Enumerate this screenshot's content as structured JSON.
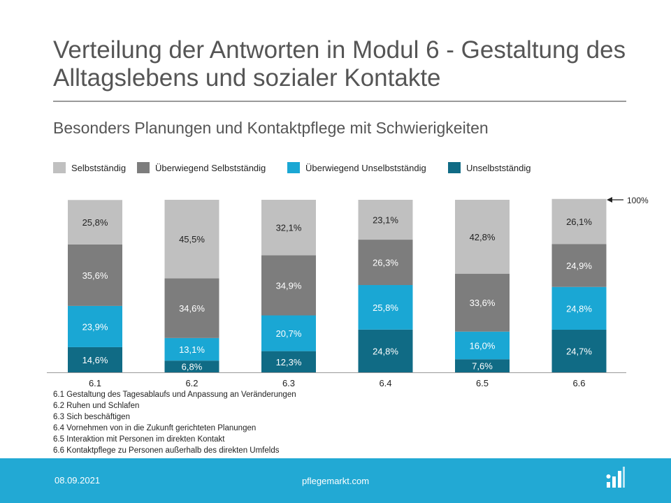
{
  "title": "Verteilung der Antworten in Modul 6 - Gestaltung des Alltagslebens und sozialer Kontakte",
  "subtitle": "Besonders Planungen und Kontaktpflege mit Schwierigkeiten",
  "chart_data": {
    "type": "bar",
    "stacked": true,
    "categories": [
      "6.1",
      "6.2",
      "6.3",
      "6.4",
      "6.5",
      "6.6"
    ],
    "series": [
      {
        "name": "Unselbstständig",
        "color": "#106b85",
        "values": [
          14.6,
          6.8,
          12.3,
          24.8,
          7.6,
          24.7
        ],
        "labels": [
          "14,6%",
          "6,8%",
          "12,3%",
          "24,8%",
          "7,6%",
          "24,7%"
        ]
      },
      {
        "name": "Überwiegend Unselbstständig",
        "color": "#1aa7d4",
        "values": [
          23.9,
          13.1,
          20.7,
          25.8,
          16.0,
          24.8
        ],
        "labels": [
          "23,9%",
          "13,1%",
          "20,7%",
          "25,8%",
          "16,0%",
          "24,8%"
        ]
      },
      {
        "name": "Überwiegend Selbstständig",
        "color": "#7d7d7d",
        "values": [
          35.6,
          34.6,
          34.9,
          26.3,
          33.6,
          24.9
        ],
        "labels": [
          "35,6%",
          "34,6%",
          "34,9%",
          "26,3%",
          "33,6%",
          "24,9%"
        ]
      },
      {
        "name": "Selbstständig",
        "color": "#c0c0c0",
        "values": [
          25.8,
          45.5,
          32.1,
          23.1,
          42.8,
          26.1
        ],
        "labels": [
          "25,8%",
          "45,5%",
          "32,1%",
          "23,1%",
          "42,8%",
          "26,1%"
        ]
      }
    ],
    "legend": [
      "Selbstständig",
      "Überwiegend Selbstständig",
      "Überwiegend Unselbstständig",
      "Unselbstständig"
    ],
    "legend_position": "top",
    "ylim": [
      0,
      100
    ],
    "annotation": "100%",
    "grid": false
  },
  "notes": [
    "6.1 Gestaltung des Tagesablaufs und Anpassung an Veränderungen",
    "6.2 Ruhen und Schlafen",
    "6.3 Sich beschäftigen",
    "6.4 Vornehmen von in die Zukunft gerichteten Planungen",
    "6.5 Interaktion mit Personen im direkten Kontakt",
    "6.6 Kontaktpflege zu Personen außerhalb des direkten Umfelds"
  ],
  "footer": {
    "date": "08.09.2021",
    "site": "pflegemarkt.com",
    "logo_icon": "pflegemarkt-logo-icon"
  }
}
